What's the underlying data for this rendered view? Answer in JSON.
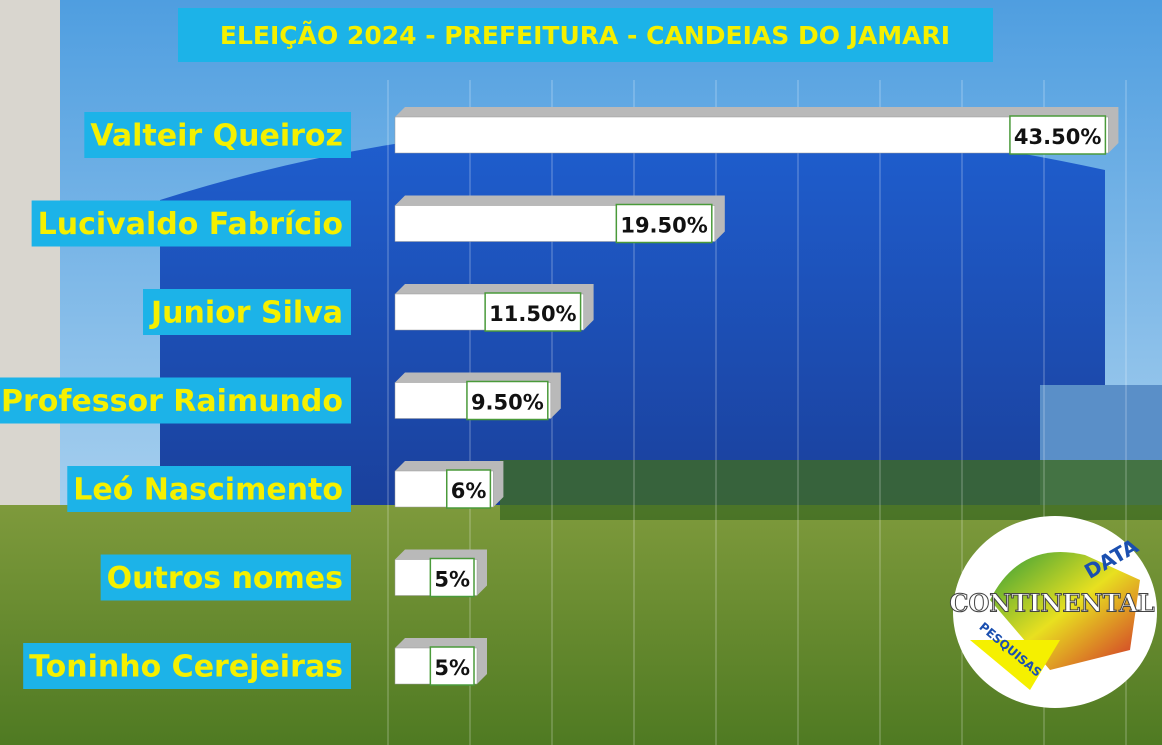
{
  "chart_data": {
    "type": "bar",
    "orientation": "horizontal",
    "title": "ELEIÇÃO 2024 - PREFEITURA - CANDEIAS DO JAMARI",
    "categories": [
      "Valteir Queiroz",
      "Lucivaldo Fabrício",
      "Junior Silva",
      "Professor Raimundo",
      "Leó Nascimento",
      "Outros nomes",
      "Toninho Cerejeiras"
    ],
    "values": [
      43.5,
      19.5,
      11.5,
      9.5,
      6,
      5,
      5
    ],
    "value_labels": [
      "43.50%",
      "19.50%",
      "11.50%",
      "9.50%",
      "6%",
      "5%",
      "5%"
    ],
    "color": "#ffffff",
    "xlim": [
      0,
      45
    ],
    "xticks": [
      0,
      5,
      10,
      15,
      20,
      25,
      30,
      35,
      40,
      45
    ],
    "grid": true
  },
  "logo": {
    "top": "DATA",
    "middle": "CONTINENTAL",
    "bottom": "PESQUISAS"
  }
}
